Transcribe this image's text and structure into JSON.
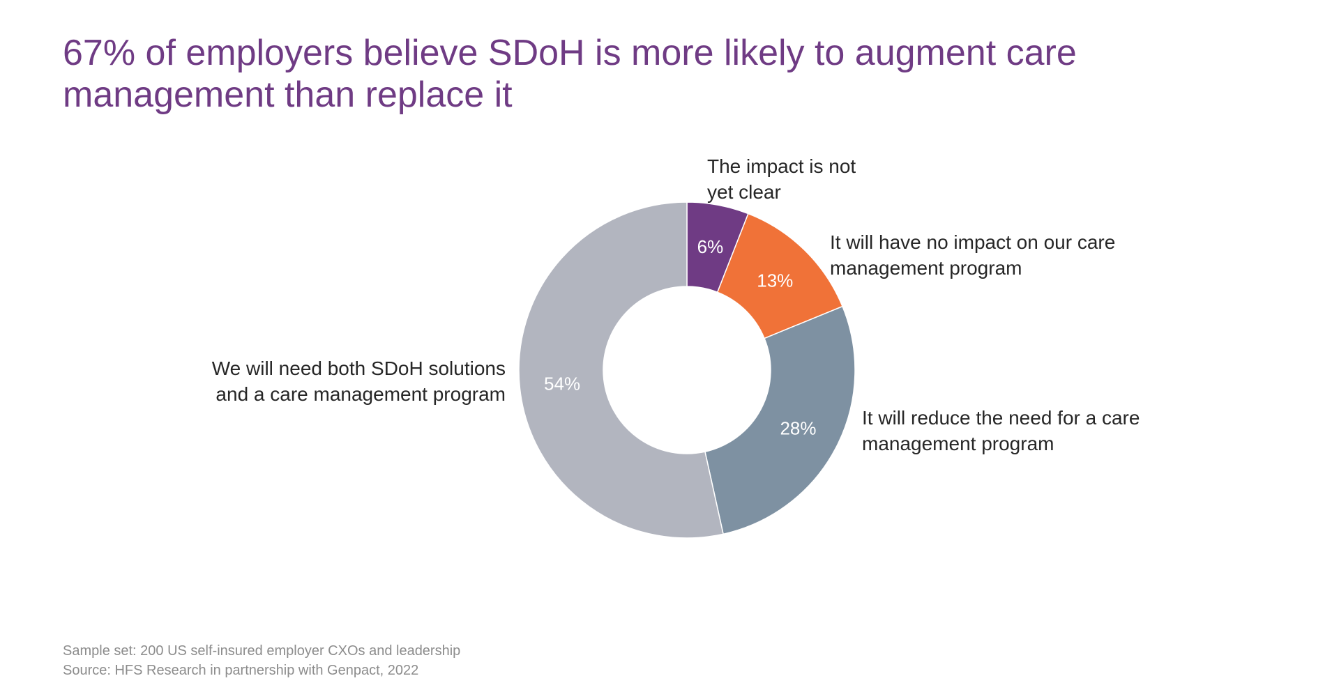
{
  "title": {
    "line1": "67% of employers believe SDoH is more likely to augment care",
    "line2": "management than replace it"
  },
  "chart_data": {
    "type": "pie",
    "variant": "donut",
    "categories": [
      "The impact is not yet clear",
      "It will have no impact on our care management program",
      "It will reduce the need for a care management program",
      "We will need both SDoH solutions and a care management program"
    ],
    "values": [
      6,
      13,
      28,
      54
    ],
    "data_labels": [
      "6%",
      "13%",
      "28%",
      "54%"
    ],
    "colors": [
      "#6f3b84",
      "#f07238",
      "#7e91a2",
      "#b2b5bf"
    ],
    "label_lines": [
      [
        "The impact is not",
        "yet clear"
      ],
      [
        "It will have no impact on our care",
        "management program"
      ],
      [
        "It will reduce the need for a care",
        "management program"
      ],
      [
        "We will need both SDoH solutions",
        "and a care management program"
      ]
    ],
    "title": "67% of employers believe SDoH is more likely to augment care management than replace it",
    "legend": "none"
  },
  "footnote": {
    "sample": "Sample set: 200 US self-insured employer CXOs and leadership",
    "source": "Source: HFS Research in partnership with Genpact, 2022"
  }
}
